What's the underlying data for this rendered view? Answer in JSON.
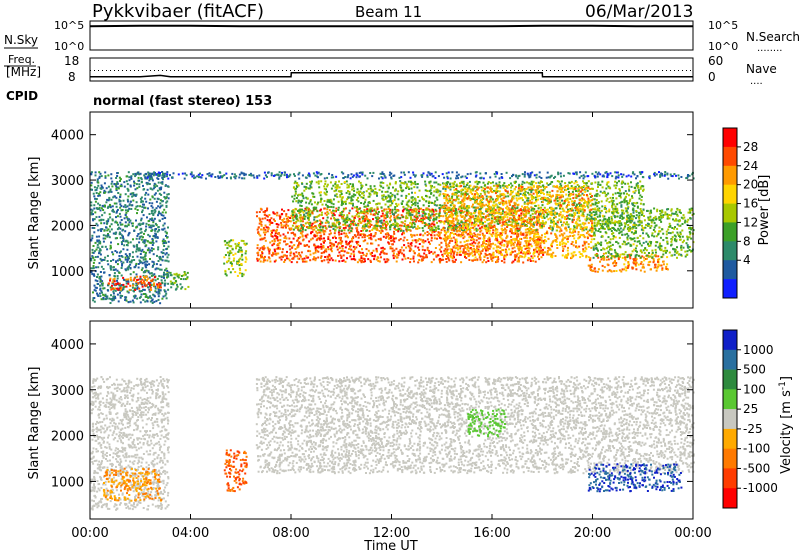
{
  "header": {
    "station": "Pykkvibaer (fitACF)",
    "beam": "Beam 11",
    "date": "06/Mar/2013"
  },
  "noise_panel": {
    "left_label": "N.Sky",
    "left_ticks": [
      "10^5",
      "10^0"
    ],
    "right_ticks": [
      "10^5",
      "10^0"
    ],
    "right_label": "N.Search",
    "right_line": "........"
  },
  "freq_panel": {
    "left_label_line1": "Freq.",
    "left_label_line2": "[MHz]",
    "left_ticks": [
      "18",
      "8"
    ],
    "right_ticks": [
      "60",
      "0"
    ],
    "right_label": "Nave",
    "right_line": "....",
    "cpid_label": "CPID",
    "cpid_text": "normal (fast stereo) 153"
  },
  "panels": {
    "ylabel": "Slant Range [km]",
    "yticks": [
      1000,
      2000,
      3000,
      4000
    ],
    "ylim": [
      180,
      4500
    ],
    "xticks": [
      "00:00",
      "04:00",
      "08:00",
      "12:00",
      "16:00",
      "20:00",
      "00:00"
    ],
    "xlabel": "Time UT"
  },
  "power_scale": {
    "title": "Power [dB]",
    "labels": [
      "28",
      "24",
      "20",
      "16",
      "12",
      "8",
      "4"
    ],
    "colors": [
      "#ff0000",
      "#ff4a00",
      "#ff9a00",
      "#ffd400",
      "#a8c800",
      "#3ca028",
      "#2d8a6a",
      "#1f5aa0",
      "#1020ff"
    ]
  },
  "velocity_scale": {
    "title": "Velocity [m s",
    "title_sup": "-1",
    "title_end": "]",
    "labels": [
      "1000",
      "500",
      "100",
      "25",
      "-25",
      "-100",
      "-500",
      "-1000"
    ],
    "colors": [
      "#1020c8",
      "#2a70a0",
      "#2e8a3e",
      "#5ac832",
      "#c8c8c0",
      "#ffaa00",
      "#ff7a00",
      "#ff3c00",
      "#ff0000"
    ]
  },
  "chart_data": [
    {
      "type": "line",
      "title": "N.Sky / N.Search",
      "ylim": [
        0,
        5
      ],
      "x": [
        0,
        2,
        4,
        6,
        8,
        10,
        12,
        14,
        16,
        18,
        20,
        22,
        24
      ],
      "series": [
        {
          "name": "N.Sky",
          "values": [
            4.2,
            4.3,
            4.3,
            4.2,
            4.2,
            4.2,
            4.2,
            4.2,
            4.2,
            4.3,
            4.3,
            4.2,
            4.2
          ]
        }
      ]
    },
    {
      "type": "line",
      "title": "Freq. / Nave",
      "ylim": [
        8,
        18
      ],
      "x": [
        0,
        2,
        2.8,
        3.2,
        4,
        8,
        8.01,
        12,
        16,
        18,
        18.01,
        20,
        24
      ],
      "series": [
        {
          "name": "Freq.",
          "values": [
            9.5,
            9.5,
            10.2,
            9.5,
            9.5,
            9.5,
            11.5,
            11.5,
            11.5,
            11.5,
            9.5,
            9.5,
            9.5
          ]
        },
        {
          "name": "Nave",
          "values": [
            12.5,
            12.5,
            12.5,
            12.5,
            12.5,
            12.5,
            12.5,
            12.5,
            12.5,
            12.5,
            12.5,
            12.5,
            12.5
          ]
        }
      ]
    },
    {
      "type": "heatmap",
      "title": "Power [dB]",
      "x_unit": "hours UT",
      "y_unit": "km",
      "xlim": [
        0,
        24
      ],
      "ylim": [
        180,
        4500
      ],
      "regions": [
        {
          "x": [
            0,
            3.1
          ],
          "y": [
            300,
            3200
          ],
          "value": 8
        },
        {
          "x": [
            0.6,
            2.8
          ],
          "y": [
            600,
            900
          ],
          "value": 26
        },
        {
          "x": [
            3,
            3.9
          ],
          "y": [
            600,
            1000
          ],
          "value": 12
        },
        {
          "x": [
            5.3,
            6.2
          ],
          "y": [
            900,
            1700
          ],
          "value": 16
        },
        {
          "x": [
            2.1,
            24
          ],
          "y": [
            3050,
            3200
          ],
          "value": 6
        },
        {
          "x": [
            6.6,
            18
          ],
          "y": [
            1200,
            2400
          ],
          "value": 26
        },
        {
          "x": [
            8,
            22
          ],
          "y": [
            1900,
            3000
          ],
          "value": 14
        },
        {
          "x": [
            14,
            20
          ],
          "y": [
            1300,
            2900
          ],
          "value": 22
        },
        {
          "x": [
            19.8,
            23
          ],
          "y": [
            1000,
            1400
          ],
          "value": 24
        },
        {
          "x": [
            20,
            24
          ],
          "y": [
            1300,
            2400
          ],
          "value": 14
        }
      ]
    },
    {
      "type": "heatmap",
      "title": "Velocity",
      "x_unit": "hours UT",
      "y_unit": "km",
      "xlim": [
        0,
        24
      ],
      "ylim": [
        180,
        4500
      ],
      "regions": [
        {
          "x": [
            0,
            3.1
          ],
          "y": [
            400,
            3300
          ],
          "value": 0
        },
        {
          "x": [
            0.5,
            2.8
          ],
          "y": [
            600,
            1300
          ],
          "value": -100
        },
        {
          "x": [
            5.3,
            6.2
          ],
          "y": [
            800,
            1700
          ],
          "value": -300
        },
        {
          "x": [
            6.6,
            24
          ],
          "y": [
            1200,
            3300
          ],
          "value": 0
        },
        {
          "x": [
            15,
            16.5
          ],
          "y": [
            2000,
            2600
          ],
          "value": 50
        },
        {
          "x": [
            19.8,
            23.5
          ],
          "y": [
            800,
            1400
          ],
          "value": 700
        }
      ]
    }
  ]
}
